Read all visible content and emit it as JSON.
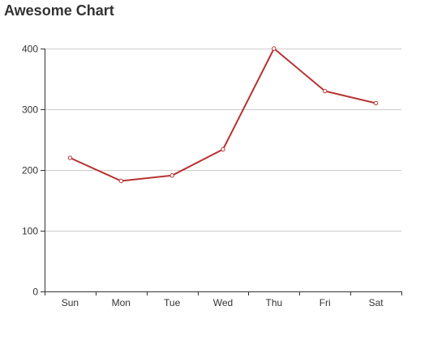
{
  "chart_data": {
    "type": "line",
    "title": "Awesome Chart",
    "categories": [
      "Sun",
      "Mon",
      "Tue",
      "Wed",
      "Thu",
      "Fri",
      "Sat"
    ],
    "series": [
      {
        "values": [
          220,
          182,
          191,
          234,
          400,
          330,
          310
        ],
        "color": "#b83232"
      }
    ],
    "ylim": [
      0,
      400
    ],
    "yticks": [
      0,
      100,
      200,
      300,
      400
    ],
    "xlabel": "",
    "ylabel": "",
    "grid": true,
    "legend": "none"
  }
}
